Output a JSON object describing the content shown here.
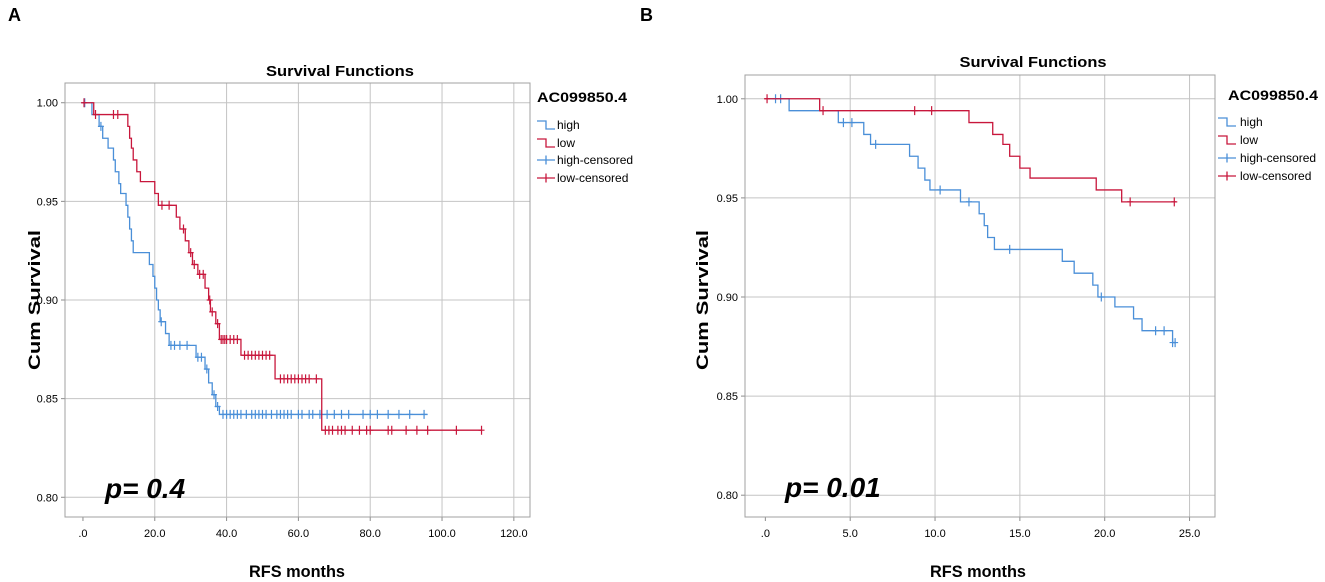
{
  "chart_data": [
    {
      "type": "line",
      "subtype": "kaplan-meier-step",
      "panel_label": "A",
      "title": "Survival Functions",
      "xlabel": "RFS months",
      "ylabel": "Cum Survival",
      "xlim": [
        -5,
        124.5
      ],
      "ylim": [
        0.79,
        1.01
      ],
      "grid": true,
      "x_ticks": [
        {
          "value": 0,
          "label": ".0"
        },
        {
          "value": 20,
          "label": "20.0"
        },
        {
          "value": 40,
          "label": "40.0"
        },
        {
          "value": 60,
          "label": "60.0"
        },
        {
          "value": 80,
          "label": "80.0"
        },
        {
          "value": 100,
          "label": "100.0"
        },
        {
          "value": 120,
          "label": "120.0"
        }
      ],
      "y_ticks": [
        {
          "value": 0.8,
          "label": "0.80"
        },
        {
          "value": 0.85,
          "label": "0.85"
        },
        {
          "value": 0.9,
          "label": "0.90"
        },
        {
          "value": 0.95,
          "label": "0.95"
        },
        {
          "value": 1.0,
          "label": "1.00"
        }
      ],
      "legend": {
        "title": "AC099850.4",
        "position": "right",
        "entries": [
          {
            "label": "high",
            "series": "high",
            "kind": "line"
          },
          {
            "label": "low",
            "series": "low",
            "kind": "line"
          },
          {
            "label": "high-censored",
            "series": "high",
            "kind": "censored"
          },
          {
            "label": "low-censored",
            "series": "low",
            "kind": "censored"
          }
        ]
      },
      "annotation": "p= 0.4",
      "series": [
        {
          "name": "high",
          "color": "#4a8fd8",
          "steps": [
            [
              0,
              1.0
            ],
            [
              2.5,
              0.994
            ],
            [
              4.5,
              0.988
            ],
            [
              5.5,
              0.982
            ],
            [
              7,
              0.977
            ],
            [
              8.5,
              0.971
            ],
            [
              9,
              0.965
            ],
            [
              10,
              0.959
            ],
            [
              10.5,
              0.954
            ],
            [
              12,
              0.948
            ],
            [
              12.5,
              0.942
            ],
            [
              13,
              0.936
            ],
            [
              13.5,
              0.93
            ],
            [
              14,
              0.924
            ],
            [
              18.5,
              0.918
            ],
            [
              19.5,
              0.912
            ],
            [
              20,
              0.906
            ],
            [
              20.5,
              0.9
            ],
            [
              21,
              0.895
            ],
            [
              21.5,
              0.889
            ],
            [
              23,
              0.883
            ],
            [
              24,
              0.877
            ],
            [
              31.5,
              0.871
            ],
            [
              34,
              0.865
            ],
            [
              35,
              0.858
            ],
            [
              36,
              0.852
            ],
            [
              37,
              0.846
            ],
            [
              38,
              0.842
            ]
          ],
          "end": 96,
          "censored": [
            [
              0.5,
              1.0
            ],
            [
              5,
              0.988
            ],
            [
              21.8,
              0.889
            ],
            [
              24.5,
              0.877
            ],
            [
              25.5,
              0.877
            ],
            [
              27,
              0.877
            ],
            [
              29,
              0.877
            ],
            [
              32,
              0.871
            ],
            [
              33,
              0.871
            ],
            [
              34.5,
              0.865
            ],
            [
              36.5,
              0.852
            ],
            [
              37.5,
              0.846
            ],
            [
              39,
              0.842
            ],
            [
              40,
              0.842
            ],
            [
              41,
              0.842
            ],
            [
              42,
              0.842
            ],
            [
              43,
              0.842
            ],
            [
              44,
              0.842
            ],
            [
              45.5,
              0.842
            ],
            [
              47,
              0.842
            ],
            [
              48,
              0.842
            ],
            [
              49,
              0.842
            ],
            [
              50,
              0.842
            ],
            [
              51,
              0.842
            ],
            [
              52.5,
              0.842
            ],
            [
              54,
              0.842
            ],
            [
              55,
              0.842
            ],
            [
              56,
              0.842
            ],
            [
              57,
              0.842
            ],
            [
              58,
              0.842
            ],
            [
              60,
              0.842
            ],
            [
              61,
              0.842
            ],
            [
              63,
              0.842
            ],
            [
              64,
              0.842
            ],
            [
              66,
              0.842
            ],
            [
              68,
              0.842
            ],
            [
              70,
              0.842
            ],
            [
              72,
              0.842
            ],
            [
              74,
              0.842
            ],
            [
              78,
              0.842
            ],
            [
              80,
              0.842
            ],
            [
              82,
              0.842
            ],
            [
              85,
              0.842
            ],
            [
              88,
              0.842
            ],
            [
              91,
              0.842
            ],
            [
              95,
              0.842
            ]
          ]
        },
        {
          "name": "low",
          "color": "#c8173c",
          "steps": [
            [
              0,
              1.0
            ],
            [
              3,
              0.994
            ],
            [
              12.5,
              0.988
            ],
            [
              13,
              0.982
            ],
            [
              13.5,
              0.977
            ],
            [
              14,
              0.971
            ],
            [
              15,
              0.965
            ],
            [
              16,
              0.96
            ],
            [
              20,
              0.954
            ],
            [
              21,
              0.948
            ],
            [
              26,
              0.942
            ],
            [
              27,
              0.936
            ],
            [
              28.5,
              0.93
            ],
            [
              29.5,
              0.924
            ],
            [
              30.5,
              0.918
            ],
            [
              32,
              0.913
            ],
            [
              34,
              0.906
            ],
            [
              35,
              0.9
            ],
            [
              35.5,
              0.894
            ],
            [
              37,
              0.888
            ],
            [
              38,
              0.88
            ],
            [
              44,
              0.872
            ],
            [
              53.5,
              0.86
            ],
            [
              66.5,
              0.834
            ]
          ],
          "end": 111,
          "censored": [
            [
              0.3,
              1.0
            ],
            [
              3.5,
              0.994
            ],
            [
              8.5,
              0.994
            ],
            [
              9.7,
              0.994
            ],
            [
              22,
              0.948
            ],
            [
              24,
              0.948
            ],
            [
              28,
              0.936
            ],
            [
              30,
              0.924
            ],
            [
              31,
              0.918
            ],
            [
              32.5,
              0.913
            ],
            [
              33.5,
              0.913
            ],
            [
              35.3,
              0.9
            ],
            [
              36,
              0.894
            ],
            [
              37.5,
              0.888
            ],
            [
              38.5,
              0.88
            ],
            [
              39,
              0.88
            ],
            [
              39.5,
              0.88
            ],
            [
              40,
              0.88
            ],
            [
              41,
              0.88
            ],
            [
              42,
              0.88
            ],
            [
              43,
              0.88
            ],
            [
              45,
              0.872
            ],
            [
              46,
              0.872
            ],
            [
              47,
              0.872
            ],
            [
              48,
              0.872
            ],
            [
              49,
              0.872
            ],
            [
              50,
              0.872
            ],
            [
              51,
              0.872
            ],
            [
              52,
              0.872
            ],
            [
              55,
              0.86
            ],
            [
              56,
              0.86
            ],
            [
              57,
              0.86
            ],
            [
              58,
              0.86
            ],
            [
              59,
              0.86
            ],
            [
              60,
              0.86
            ],
            [
              61,
              0.86
            ],
            [
              62,
              0.86
            ],
            [
              63,
              0.86
            ],
            [
              65,
              0.86
            ],
            [
              67.5,
              0.834
            ],
            [
              68.5,
              0.834
            ],
            [
              69.5,
              0.834
            ],
            [
              71,
              0.834
            ],
            [
              72,
              0.834
            ],
            [
              73,
              0.834
            ],
            [
              75,
              0.834
            ],
            [
              77,
              0.834
            ],
            [
              79,
              0.834
            ],
            [
              80,
              0.834
            ],
            [
              85,
              0.834
            ],
            [
              86,
              0.834
            ],
            [
              90,
              0.834
            ],
            [
              93,
              0.834
            ],
            [
              96,
              0.834
            ],
            [
              104,
              0.834
            ],
            [
              111,
              0.834
            ]
          ]
        }
      ]
    },
    {
      "type": "line",
      "subtype": "kaplan-meier-step",
      "panel_label": "B",
      "title": "Survival Functions",
      "xlabel": "RFS months",
      "ylabel": "Cum Survival",
      "xlim": [
        -1.2,
        26.5
      ],
      "ylim": [
        0.789,
        1.012
      ],
      "grid": true,
      "x_ticks": [
        {
          "value": 0,
          "label": ".0"
        },
        {
          "value": 5,
          "label": "5.0"
        },
        {
          "value": 10,
          "label": "10.0"
        },
        {
          "value": 15,
          "label": "15.0"
        },
        {
          "value": 20,
          "label": "20.0"
        },
        {
          "value": 25,
          "label": "25.0"
        }
      ],
      "y_ticks": [
        {
          "value": 0.8,
          "label": "0.80"
        },
        {
          "value": 0.85,
          "label": "0.85"
        },
        {
          "value": 0.9,
          "label": "0.90"
        },
        {
          "value": 0.95,
          "label": "0.95"
        },
        {
          "value": 1.0,
          "label": "1.00"
        }
      ],
      "legend": {
        "title": "AC099850.4",
        "position": "right",
        "entries": [
          {
            "label": "high",
            "series": "high",
            "kind": "line"
          },
          {
            "label": "low",
            "series": "low",
            "kind": "line"
          },
          {
            "label": "high-censored",
            "series": "high",
            "kind": "censored"
          },
          {
            "label": "low-censored",
            "series": "low",
            "kind": "censored"
          }
        ]
      },
      "annotation": "p= 0.01",
      "series": [
        {
          "name": "high",
          "color": "#4a8fd8",
          "steps": [
            [
              0,
              1.0
            ],
            [
              1.4,
              0.994
            ],
            [
              4.3,
              0.988
            ],
            [
              5.8,
              0.982
            ],
            [
              6.2,
              0.977
            ],
            [
              8.5,
              0.971
            ],
            [
              9.0,
              0.965
            ],
            [
              9.4,
              0.959
            ],
            [
              9.7,
              0.954
            ],
            [
              11.5,
              0.948
            ],
            [
              12.6,
              0.942
            ],
            [
              12.9,
              0.936
            ],
            [
              13.1,
              0.93
            ],
            [
              13.5,
              0.924
            ],
            [
              17.5,
              0.918
            ],
            [
              18.2,
              0.912
            ],
            [
              19.3,
              0.906
            ],
            [
              19.6,
              0.9
            ],
            [
              20.6,
              0.895
            ],
            [
              21.7,
              0.889
            ],
            [
              22.2,
              0.883
            ],
            [
              24.0,
              0.877
            ]
          ],
          "end": 24.2,
          "censored": [
            [
              0.6,
              1.0
            ],
            [
              0.9,
              1.0
            ],
            [
              4.6,
              0.988
            ],
            [
              5.1,
              0.988
            ],
            [
              6.5,
              0.977
            ],
            [
              10.3,
              0.954
            ],
            [
              12.0,
              0.948
            ],
            [
              14.4,
              0.924
            ],
            [
              19.8,
              0.9
            ],
            [
              23.0,
              0.883
            ],
            [
              23.5,
              0.883
            ],
            [
              24.0,
              0.877
            ],
            [
              24.15,
              0.877
            ]
          ]
        },
        {
          "name": "low",
          "color": "#c8173c",
          "steps": [
            [
              0,
              1.0
            ],
            [
              3.2,
              0.994
            ],
            [
              12.0,
              0.988
            ],
            [
              13.4,
              0.982
            ],
            [
              14.0,
              0.977
            ],
            [
              14.4,
              0.971
            ],
            [
              15.0,
              0.965
            ],
            [
              15.6,
              0.96
            ],
            [
              19.5,
              0.954
            ],
            [
              21.0,
              0.948
            ]
          ],
          "end": 24.2,
          "censored": [
            [
              0.1,
              1.0
            ],
            [
              3.4,
              0.994
            ],
            [
              8.8,
              0.994
            ],
            [
              9.8,
              0.994
            ],
            [
              21.5,
              0.948
            ],
            [
              24.1,
              0.948
            ]
          ]
        }
      ]
    }
  ]
}
